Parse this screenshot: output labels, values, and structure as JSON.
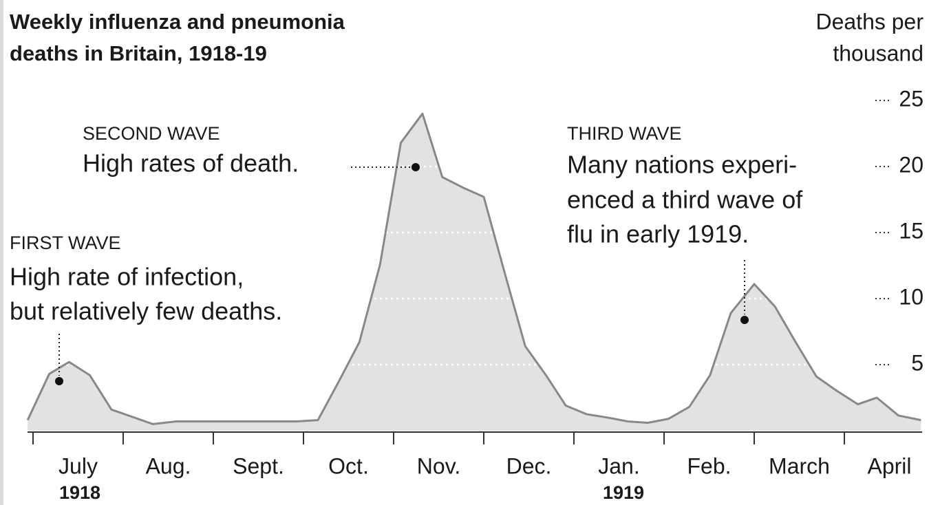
{
  "chart_data": {
    "type": "area",
    "title": [
      "Weekly influenza and pneumonia",
      "deaths in Britain, 1918-19"
    ],
    "y_axis_label": [
      "Deaths per",
      "thousand"
    ],
    "categories": [
      "July",
      "Aug.",
      "Sept.",
      "Oct.",
      "Nov.",
      "Dec.",
      "Jan.",
      "Feb.",
      "March",
      "April"
    ],
    "year_labels": [
      "1918",
      "1919"
    ],
    "series": [
      {
        "color": "#e2e2e2",
        "x": [
          -0.06,
          0.18,
          0.4,
          0.63,
          0.87,
          1.08,
          1.33,
          1.58,
          1.92,
          2.38,
          2.92,
          3.16,
          3.39,
          3.62,
          3.85,
          4.08,
          4.32,
          4.54,
          4.77,
          5.0,
          5.23,
          5.46,
          5.69,
          5.91,
          6.14,
          6.37,
          6.6,
          6.82,
          7.05,
          7.28,
          7.51,
          7.74,
          8.0,
          8.23,
          8.46,
          8.69,
          8.92,
          9.15,
          9.36,
          9.6,
          9.85
        ],
        "values": [
          0.8,
          4.3,
          5.2,
          4.2,
          1.6,
          1.1,
          0.5,
          0.7,
          0.7,
          0.7,
          0.7,
          0.8,
          3.7,
          6.7,
          12.6,
          21.8,
          24.0,
          19.2,
          18.4,
          17.7,
          12.0,
          6.4,
          4.2,
          1.9,
          1.25,
          1.0,
          0.7,
          0.6,
          0.9,
          1.8,
          4.2,
          8.9,
          11.1,
          9.4,
          6.7,
          4.1,
          3.0,
          2.0,
          2.5,
          1.15,
          0.8
        ]
      }
    ],
    "xlim": [
      -0.06,
      9.85
    ],
    "ylim": [
      0,
      25
    ],
    "yticks": [
      5,
      10,
      15,
      20,
      25
    ],
    "grid": true,
    "annotations": [
      {
        "heading": "FIRST WAVE",
        "lines": [
          "High rate of infection,",
          "but relatively few deaths."
        ]
      },
      {
        "heading": "SECOND WAVE",
        "lines": [
          "High rates of death."
        ]
      },
      {
        "heading": "THIRD WAVE",
        "lines": [
          "Many nations experi-",
          "enced a third wave of",
          "flu in early 1919."
        ]
      }
    ]
  }
}
